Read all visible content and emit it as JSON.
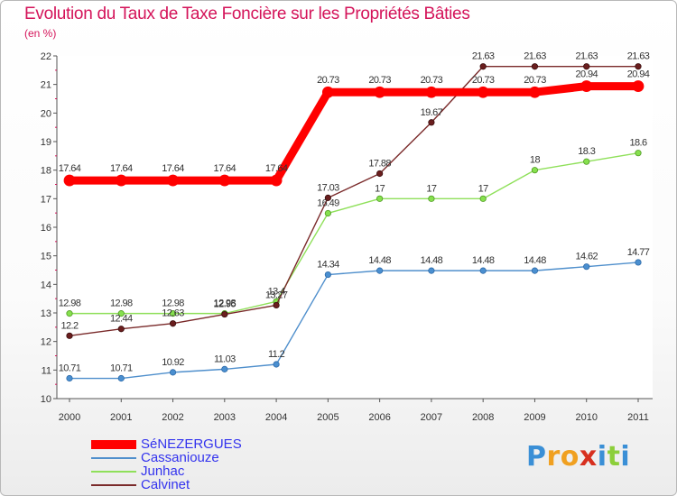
{
  "title": "Evolution du Taux de Taxe Foncière sur les Propriétés Bâties",
  "subtitle": "(en %)",
  "chart_data": {
    "type": "line",
    "title": "Evolution du Taux de Taxe Foncière sur les Propriétés Bâties",
    "ylabel": "(en %)",
    "xlabel": "",
    "ylim": [
      10,
      22
    ],
    "yticks": [
      "10",
      "11",
      "12",
      "13",
      "14",
      "15",
      "16",
      "17",
      "18",
      "19",
      "20",
      "21",
      "22"
    ],
    "categories": [
      "2000",
      "2001",
      "2002",
      "2003",
      "2004",
      "2005",
      "2006",
      "2007",
      "2008",
      "2009",
      "2010",
      "2011"
    ],
    "grid": false,
    "series": [
      {
        "name": "SéNEZERGUES",
        "color": "#ff0000",
        "values": [
          17.64,
          17.64,
          17.64,
          17.64,
          17.64,
          20.73,
          20.73,
          20.73,
          20.73,
          20.73,
          20.94,
          20.94
        ],
        "labels": [
          "17.64",
          "17.64",
          "17.64",
          "17.64",
          "17.64",
          "20.73",
          "20.73",
          "20.73",
          "20.73",
          "20.73",
          "20.94",
          "20.94"
        ]
      },
      {
        "name": "Cassaniouze",
        "color": "#4f8fcc",
        "values": [
          10.71,
          10.71,
          10.92,
          11.03,
          11.2,
          14.34,
          14.48,
          14.48,
          14.48,
          14.48,
          14.62,
          14.77
        ],
        "labels": [
          "10.71",
          "10.71",
          "10.92",
          "11.03",
          "11.2",
          "14.34",
          "14.48",
          "14.48",
          "14.48",
          "14.48",
          "14.62",
          "14.77"
        ]
      },
      {
        "name": "Junhac",
        "color": "#8fe05a",
        "values": [
          12.98,
          12.98,
          12.98,
          12.98,
          13.4,
          16.49,
          17,
          17,
          17,
          18,
          18.3,
          18.6
        ],
        "labels": [
          "12.98",
          "12.98",
          "12.98",
          "12.98",
          "13.4",
          "16.49",
          "17",
          "17",
          "17",
          "18",
          "18.3",
          "18.6"
        ]
      },
      {
        "name": "Calvinet",
        "color": "#7a2a2a",
        "values": [
          12.2,
          12.44,
          12.63,
          12.95,
          13.27,
          17.03,
          17.88,
          19.67,
          21.63,
          21.63,
          21.63,
          21.63
        ],
        "labels": [
          "12.2",
          "12.44",
          "12.63",
          "12.95",
          "13.27",
          "17.03",
          "17.88",
          "19.67",
          "21.63",
          "21.63",
          "21.63",
          "21.63"
        ]
      }
    ]
  },
  "logo": {
    "letters": [
      "P",
      "r",
      "o",
      "x",
      "i",
      "t",
      "i"
    ],
    "colors": [
      "#3a8fd6",
      "#f0a020",
      "#f0a020",
      "#d7301f",
      "#3a8fd6",
      "#8ccf3a",
      "#3a8fd6"
    ]
  }
}
